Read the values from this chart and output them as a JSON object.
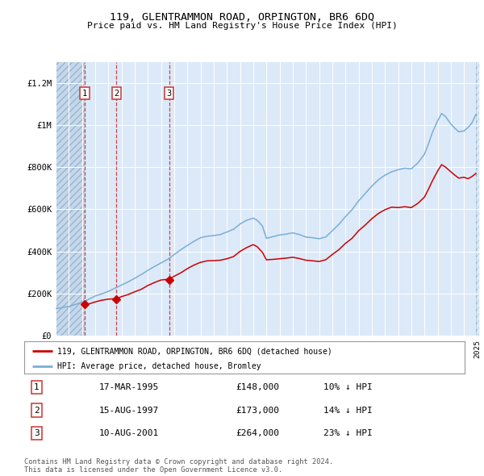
{
  "title": "119, GLENTRAMMON ROAD, ORPINGTON, BR6 6DQ",
  "subtitle": "Price paid vs. HM Land Registry's House Price Index (HPI)",
  "ylim": [
    0,
    1300000
  ],
  "yticks": [
    0,
    200000,
    400000,
    600000,
    800000,
    1000000,
    1200000
  ],
  "ytick_labels": [
    "£0",
    "£200K",
    "£400K",
    "£600K",
    "£800K",
    "£1M",
    "£1.2M"
  ],
  "plot_bg_color": "#dce9f8",
  "grid_color": "#ffffff",
  "red_line_color": "#cc0000",
  "blue_line_color": "#7aaed6",
  "sale_year_floats": [
    1995.21,
    1997.62,
    2001.61
  ],
  "sale_values": [
    148000,
    173000,
    264000
  ],
  "sale_labels": [
    "1",
    "2",
    "3"
  ],
  "legend_label_red": "119, GLENTRAMMON ROAD, ORPINGTON, BR6 6DQ (detached house)",
  "legend_label_blue": "HPI: Average price, detached house, Bromley",
  "table_rows": [
    [
      "1",
      "17-MAR-1995",
      "£148,000",
      "10% ↓ HPI"
    ],
    [
      "2",
      "15-AUG-1997",
      "£173,000",
      "14% ↓ HPI"
    ],
    [
      "3",
      "10-AUG-2001",
      "£264,000",
      "23% ↓ HPI"
    ]
  ],
  "footer": "Contains HM Land Registry data © Crown copyright and database right 2024.\nThis data is licensed under the Open Government Licence v3.0.",
  "years_blue": [
    1993.0,
    1994.0,
    1995.0,
    1995.5,
    1996.0,
    1996.5,
    1997.0,
    1997.5,
    1998.0,
    1998.5,
    1999.0,
    1999.5,
    2000.0,
    2000.5,
    2001.0,
    2001.5,
    2002.0,
    2002.5,
    2003.0,
    2003.5,
    2004.0,
    2004.5,
    2005.0,
    2005.5,
    2006.0,
    2006.5,
    2007.0,
    2007.5,
    2008.0,
    2008.3,
    2008.7,
    2009.0,
    2009.5,
    2010.0,
    2010.5,
    2011.0,
    2011.5,
    2012.0,
    2012.5,
    2013.0,
    2013.5,
    2014.0,
    2014.5,
    2015.0,
    2015.5,
    2016.0,
    2016.5,
    2017.0,
    2017.5,
    2018.0,
    2018.5,
    2019.0,
    2019.5,
    2020.0,
    2020.5,
    2021.0,
    2021.3,
    2021.6,
    2022.0,
    2022.3,
    2022.6,
    2023.0,
    2023.3,
    2023.6,
    2024.0,
    2024.3,
    2024.6,
    2024.9
  ],
  "vals_blue": [
    128000,
    138000,
    158000,
    172000,
    188000,
    198000,
    210000,
    225000,
    240000,
    255000,
    272000,
    290000,
    310000,
    328000,
    345000,
    362000,
    385000,
    408000,
    428000,
    448000,
    465000,
    472000,
    475000,
    480000,
    492000,
    505000,
    530000,
    548000,
    558000,
    548000,
    520000,
    462000,
    470000,
    478000,
    482000,
    488000,
    480000,
    468000,
    465000,
    460000,
    468000,
    498000,
    528000,
    565000,
    598000,
    640000,
    675000,
    710000,
    740000,
    762000,
    778000,
    788000,
    795000,
    792000,
    820000,
    862000,
    910000,
    965000,
    1020000,
    1055000,
    1040000,
    1005000,
    985000,
    968000,
    972000,
    988000,
    1010000,
    1050000
  ],
  "years_red": [
    1995.21,
    1995.5,
    1996.0,
    1996.5,
    1997.0,
    1997.62,
    1998.0,
    1998.5,
    1999.0,
    1999.5,
    2000.0,
    2000.5,
    2001.0,
    2001.61,
    2002.0,
    2002.5,
    2003.0,
    2003.5,
    2004.0,
    2004.5,
    2005.0,
    2005.5,
    2006.0,
    2006.5,
    2007.0,
    2007.5,
    2008.0,
    2008.3,
    2008.7,
    2009.0,
    2009.5,
    2010.0,
    2010.5,
    2011.0,
    2011.5,
    2012.0,
    2012.5,
    2013.0,
    2013.5,
    2014.0,
    2014.5,
    2015.0,
    2015.5,
    2016.0,
    2016.5,
    2017.0,
    2017.5,
    2018.0,
    2018.5,
    2019.0,
    2019.5,
    2020.0,
    2020.5,
    2021.0,
    2021.3,
    2021.6,
    2022.0,
    2022.3,
    2022.6,
    2023.0,
    2023.3,
    2023.6,
    2024.0,
    2024.3,
    2024.6,
    2024.9
  ],
  "vals_red": [
    148000,
    150000,
    160000,
    168000,
    173000,
    175000,
    185000,
    195000,
    208000,
    220000,
    238000,
    252000,
    264000,
    268000,
    282000,
    298000,
    318000,
    335000,
    348000,
    355000,
    356000,
    358000,
    365000,
    375000,
    400000,
    418000,
    432000,
    422000,
    395000,
    360000,
    362000,
    365000,
    368000,
    372000,
    366000,
    358000,
    355000,
    352000,
    360000,
    385000,
    408000,
    438000,
    462000,
    498000,
    525000,
    555000,
    580000,
    598000,
    610000,
    608000,
    612000,
    608000,
    628000,
    658000,
    695000,
    735000,
    782000,
    812000,
    800000,
    778000,
    762000,
    748000,
    752000,
    745000,
    755000,
    770000
  ]
}
